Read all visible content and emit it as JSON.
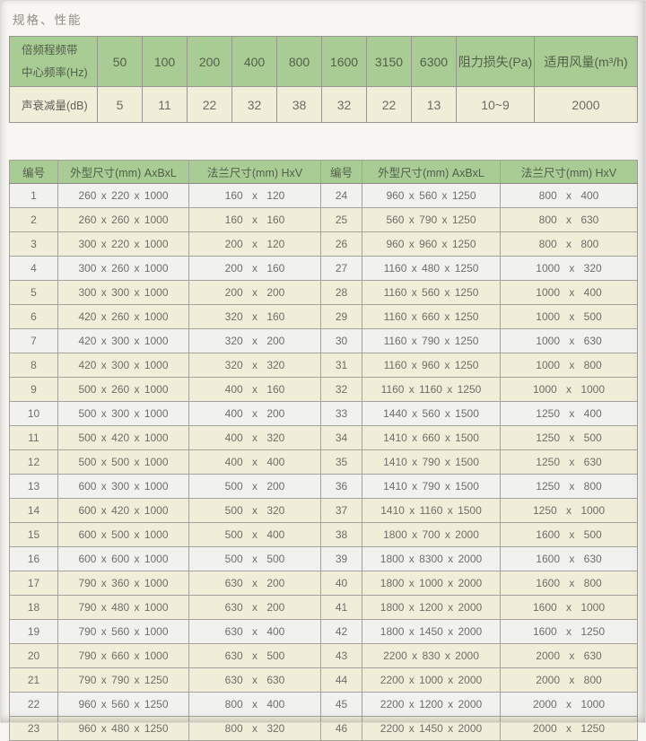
{
  "page": {
    "title": "规格、性能"
  },
  "colors": {
    "header_green": "#a8cc94",
    "row_cream": "#f0edd9",
    "row_light": "#f1f1f0",
    "table_border": "#8a8982"
  },
  "spec_table": {
    "label_lines": [
      "倍频程频带",
      "中心频率(Hz)"
    ],
    "columns": [
      "50",
      "100",
      "200",
      "400",
      "800",
      "1600",
      "3150",
      "6300",
      "阻力损失(Pa)",
      "适用风量(m³/h)"
    ],
    "row_label": "声衰减量(dB)",
    "row_values": [
      "5",
      "11",
      "22",
      "32",
      "38",
      "32",
      "22",
      "13",
      "10~9",
      "2000"
    ]
  },
  "size_table": {
    "headers": [
      "编号",
      "外型尺寸(mm) AxBxL",
      "法兰尺寸(mm) HxV",
      "编号",
      "外型尺寸(mm) AxBxL",
      "法兰尺寸(mm) HxV"
    ],
    "rows": [
      {
        "no": "1",
        "outer": "260 x 220 x 1000",
        "flange": "160 x 120",
        "no2": "24",
        "outer2": "960 x 560 x 1250",
        "flange2": "800 x 400"
      },
      {
        "no": "2",
        "outer": "260 x 260 x 1000",
        "flange": "160 x 160",
        "no2": "25",
        "outer2": "560 x 790 x 1250",
        "flange2": "800 x 630"
      },
      {
        "no": "3",
        "outer": "300 x 220 x 1000",
        "flange": "200 x 120",
        "no2": "26",
        "outer2": "960 x 960 x 1250",
        "flange2": "800 x 800"
      },
      {
        "no": "4",
        "outer": "300 x 260 x 1000",
        "flange": "200 x 160",
        "no2": "27",
        "outer2": "1160 x 480 x 1250",
        "flange2": "1000 x 320"
      },
      {
        "no": "5",
        "outer": "300 x 300 x 1000",
        "flange": "200 x 200",
        "no2": "28",
        "outer2": "1160 x 560 x 1250",
        "flange2": "1000 x 400"
      },
      {
        "no": "6",
        "outer": "420 x 260 x 1000",
        "flange": "320 x 160",
        "no2": "29",
        "outer2": "1160 x 660 x 1250",
        "flange2": "1000 x 500"
      },
      {
        "no": "7",
        "outer": "420 x 300 x 1000",
        "flange": "320 x 200",
        "no2": "30",
        "outer2": "1160 x 790 x 1250",
        "flange2": "1000 x 630"
      },
      {
        "no": "8",
        "outer": "420 x 300 x 1000",
        "flange": "320 x 320",
        "no2": "31",
        "outer2": "1160 x 960 x 1250",
        "flange2": "1000 x 800"
      },
      {
        "no": "9",
        "outer": "500 x 260 x 1000",
        "flange": "400 x 160",
        "no2": "32",
        "outer2": "1160 x 1160 x 1250",
        "flange2": "1000 x 1000"
      },
      {
        "no": "10",
        "outer": "500 x 300 x 1000",
        "flange": "400 x 200",
        "no2": "33",
        "outer2": "1440 x 560 x 1500",
        "flange2": "1250 x 400"
      },
      {
        "no": "11",
        "outer": "500 x 420 x 1000",
        "flange": "400 x 320",
        "no2": "34",
        "outer2": "1410 x 660 x 1500",
        "flange2": "1250 x 500"
      },
      {
        "no": "12",
        "outer": "500 x 500 x 1000",
        "flange": "400 x 400",
        "no2": "35",
        "outer2": "1410 x 790 x 1500",
        "flange2": "1250 x 630"
      },
      {
        "no": "13",
        "outer": "600 x 300 x 1000",
        "flange": "500 x 200",
        "no2": "36",
        "outer2": "1410 x 790 x 1500",
        "flange2": "1250 x 800"
      },
      {
        "no": "14",
        "outer": "600 x 420 x 1000",
        "flange": "500 x 320",
        "no2": "37",
        "outer2": "1410 x 1160 x 1500",
        "flange2": "1250 x 1000"
      },
      {
        "no": "15",
        "outer": "600 x 500 x 1000",
        "flange": "500 x 400",
        "no2": "38",
        "outer2": "1800 x 700 x 2000",
        "flange2": "1600 x 500"
      },
      {
        "no": "16",
        "outer": "600 x 600 x 1000",
        "flange": "500 x 500",
        "no2": "39",
        "outer2": "1800 x 8300 x 2000",
        "flange2": "1600 x 630"
      },
      {
        "no": "17",
        "outer": "790 x 360 x 1000",
        "flange": "630 x 200",
        "no2": "40",
        "outer2": "1800 x 1000 x 2000",
        "flange2": "1600 x 800"
      },
      {
        "no": "18",
        "outer": "790 x 480 x 1000",
        "flange": "630 x 200",
        "no2": "41",
        "outer2": "1800 x 1200 x 2000",
        "flange2": "1600 x 1000"
      },
      {
        "no": "19",
        "outer": "790 x 560 x 1000",
        "flange": "630 x 400",
        "no2": "42",
        "outer2": "1800 x 1450 x 2000",
        "flange2": "1600 x 1250"
      },
      {
        "no": "20",
        "outer": "790 x 660 x 1000",
        "flange": "630 x 500",
        "no2": "43",
        "outer2": "2200 x 830 x 2000",
        "flange2": "2000 x 630"
      },
      {
        "no": "21",
        "outer": "790 x 790 x 1250",
        "flange": "630 x 630",
        "no2": "44",
        "outer2": "2200 x 1000 x 2000",
        "flange2": "2000 x 800"
      },
      {
        "no": "22",
        "outer": "960 x 560 x 1250",
        "flange": "800 x 400",
        "no2": "45",
        "outer2": "2200 x 1200 x 2000",
        "flange2": "2000 x 1000"
      },
      {
        "no": "23",
        "outer": "960 x 480 x 1250",
        "flange": "800 x 320",
        "no2": "46",
        "outer2": "2200 x 1450 x 2000",
        "flange2": "2000 x 1250"
      }
    ]
  }
}
